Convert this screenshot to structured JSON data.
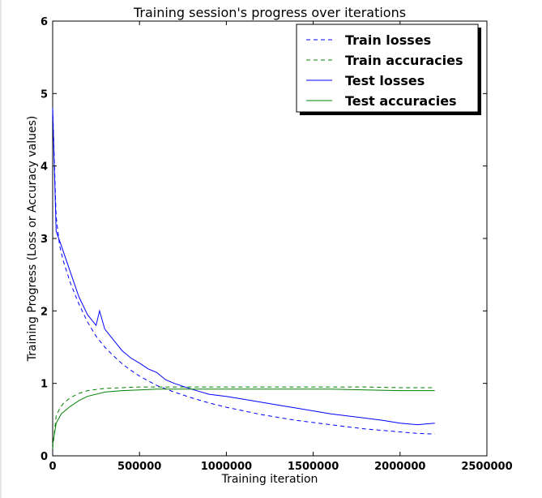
{
  "chart_data": {
    "type": "line",
    "title": "Training session's progress over iterations",
    "xlabel": "Training iteration",
    "ylabel": "Training Progress (Loss or Accuracy values)",
    "xlim": [
      0,
      2500000
    ],
    "ylim": [
      0,
      6
    ],
    "x_ticks": [
      0,
      500000,
      1000000,
      1500000,
      2000000,
      2500000
    ],
    "x_tick_labels": [
      "0",
      "500000",
      "1000000",
      "1500000",
      "2000000",
      "2500000"
    ],
    "y_ticks": [
      0,
      1,
      2,
      3,
      4,
      5,
      6
    ],
    "y_tick_labels": [
      "0",
      "1",
      "2",
      "3",
      "4",
      "5",
      "6"
    ],
    "grid": false,
    "legend_position": "top-right",
    "series": [
      {
        "name": "Train losses",
        "color": "#0000ff",
        "style": "dashed",
        "x": [
          0,
          20000,
          40000,
          60000,
          100000,
          150000,
          200000,
          250000,
          300000,
          350000,
          400000,
          450000,
          500000,
          600000,
          700000,
          800000,
          900000,
          1000000,
          1100000,
          1200000,
          1300000,
          1400000,
          1500000,
          1600000,
          1700000,
          1800000,
          1900000,
          2000000,
          2100000,
          2200000
        ],
        "y": [
          4.8,
          3.3,
          2.9,
          2.7,
          2.4,
          2.1,
          1.85,
          1.65,
          1.5,
          1.38,
          1.27,
          1.18,
          1.1,
          0.97,
          0.88,
          0.8,
          0.73,
          0.67,
          0.62,
          0.57,
          0.53,
          0.49,
          0.46,
          0.43,
          0.4,
          0.37,
          0.35,
          0.33,
          0.31,
          0.3
        ]
      },
      {
        "name": "Train accuracies",
        "color": "#008000",
        "style": "dashed",
        "x": [
          0,
          20000,
          40000,
          60000,
          100000,
          150000,
          200000,
          300000,
          400000,
          500000,
          600000,
          700000,
          800000,
          1000000,
          1200000,
          1400000,
          1600000,
          1800000,
          2000000,
          2200000
        ],
        "y": [
          0.1,
          0.55,
          0.65,
          0.72,
          0.8,
          0.86,
          0.9,
          0.93,
          0.94,
          0.95,
          0.95,
          0.95,
          0.95,
          0.95,
          0.95,
          0.95,
          0.95,
          0.95,
          0.94,
          0.94
        ]
      },
      {
        "name": "Test losses",
        "color": "#0000ff",
        "style": "solid",
        "x": [
          0,
          20000,
          50000,
          100000,
          150000,
          200000,
          250000,
          270000,
          300000,
          350000,
          400000,
          450000,
          500000,
          550000,
          600000,
          650000,
          700000,
          800000,
          900000,
          1000000,
          1100000,
          1200000,
          1300000,
          1400000,
          1500000,
          1600000,
          1700000,
          1800000,
          1900000,
          2000000,
          2100000,
          2200000
        ],
        "y": [
          4.8,
          3.1,
          2.9,
          2.55,
          2.2,
          1.95,
          1.8,
          2.0,
          1.75,
          1.6,
          1.45,
          1.35,
          1.28,
          1.2,
          1.15,
          1.05,
          1.0,
          0.92,
          0.85,
          0.82,
          0.78,
          0.74,
          0.7,
          0.66,
          0.62,
          0.58,
          0.55,
          0.52,
          0.49,
          0.45,
          0.43,
          0.45
        ]
      },
      {
        "name": "Test accuracies",
        "color": "#008000",
        "style": "solid",
        "x": [
          0,
          20000,
          50000,
          100000,
          150000,
          200000,
          300000,
          400000,
          500000,
          600000,
          700000,
          800000,
          1000000,
          1200000,
          1400000,
          1600000,
          1800000,
          2000000,
          2200000
        ],
        "y": [
          0.15,
          0.45,
          0.58,
          0.68,
          0.76,
          0.82,
          0.88,
          0.9,
          0.91,
          0.92,
          0.92,
          0.92,
          0.92,
          0.92,
          0.92,
          0.92,
          0.91,
          0.9,
          0.9
        ]
      }
    ]
  }
}
